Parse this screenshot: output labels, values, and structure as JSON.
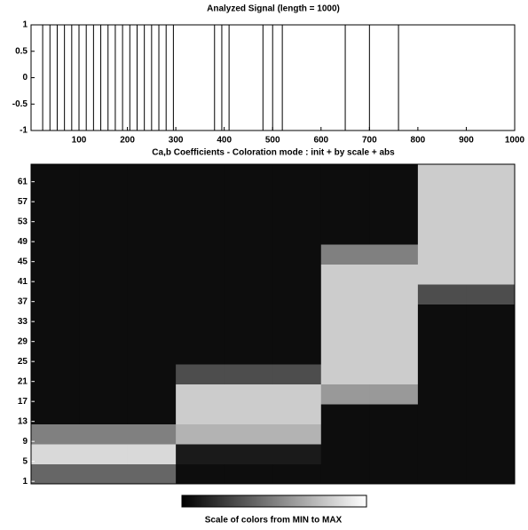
{
  "chart_data": [
    {
      "type": "line",
      "title": "Analyzed Signal  (length = 1000)",
      "color": "#000000",
      "x": [
        1,
        25,
        25,
        25,
        40,
        40,
        40,
        55,
        55,
        55,
        70,
        70,
        70,
        85,
        85,
        85,
        100,
        100,
        100,
        115,
        115,
        115,
        130,
        130,
        130,
        145,
        145,
        145,
        160,
        160,
        160,
        175,
        175,
        175,
        190,
        190,
        190,
        205,
        205,
        205,
        220,
        220,
        220,
        235,
        235,
        235,
        250,
        250,
        250,
        265,
        265,
        265,
        280,
        280,
        280,
        295,
        295,
        295,
        380,
        380,
        380,
        395,
        395,
        395,
        410,
        410,
        410,
        480,
        480,
        480,
        500,
        500,
        500,
        520,
        520,
        520,
        650,
        650,
        650,
        700,
        700,
        700,
        760,
        760,
        760,
        1000
      ],
      "values": [
        1,
        1,
        -1,
        1,
        1,
        -1,
        1,
        1,
        -1,
        1,
        1,
        -1,
        1,
        1,
        -1,
        1,
        1,
        -1,
        1,
        1,
        -1,
        1,
        1,
        -1,
        1,
        1,
        -1,
        1,
        1,
        -1,
        1,
        1,
        -1,
        1,
        1,
        -1,
        1,
        1,
        -1,
        1,
        1,
        -1,
        1,
        1,
        -1,
        1,
        1,
        -1,
        1,
        1,
        -1,
        1,
        1,
        -1,
        1,
        1,
        -1,
        1,
        1,
        -1,
        1,
        1,
        -1,
        1,
        1,
        -1,
        1,
        1,
        -1,
        1,
        1,
        -1,
        1,
        1,
        -1,
        1,
        1,
        -1,
        1,
        1,
        -1,
        1,
        1,
        -1,
        1,
        1
      ],
      "xlim": [
        1,
        1000
      ],
      "xticks": [
        100,
        200,
        300,
        400,
        500,
        600,
        700,
        800,
        900,
        1000
      ],
      "ylim": [
        -1,
        1
      ],
      "yticks": [
        -1,
        -0.5,
        0,
        0.5,
        1
      ]
    },
    {
      "type": "heatmap",
      "title": "Ca,b Coefficients  - Coloration mode : init + by scale + abs",
      "xbins": [
        1,
        100,
        200,
        300,
        400,
        500,
        600,
        700,
        800,
        900,
        1000
      ],
      "ybins": [
        0.5,
        4.5,
        8.5,
        12.5,
        16.5,
        20.5,
        24.5,
        28.5,
        32.5,
        36.5,
        40.5,
        44.5,
        48.5,
        52.5,
        56.5,
        60.5,
        64.5
      ],
      "values": [
        [
          0.4,
          0.4,
          0.4,
          0.05,
          0.05,
          0.05,
          0.05,
          0.05,
          0.05,
          0.05
        ],
        [
          0.85,
          0.85,
          0.85,
          0.1,
          0.1,
          0.1,
          0.05,
          0.05,
          0.05,
          0.05
        ],
        [
          0.5,
          0.5,
          0.5,
          0.7,
          0.7,
          0.7,
          0.05,
          0.05,
          0.05,
          0.05
        ],
        [
          0.05,
          0.05,
          0.05,
          0.8,
          0.8,
          0.8,
          0.05,
          0.05,
          0.05,
          0.05
        ],
        [
          0.05,
          0.05,
          0.05,
          0.8,
          0.8,
          0.8,
          0.6,
          0.6,
          0.05,
          0.05
        ],
        [
          0.05,
          0.05,
          0.05,
          0.3,
          0.3,
          0.3,
          0.8,
          0.8,
          0.05,
          0.05
        ],
        [
          0.05,
          0.05,
          0.05,
          0.05,
          0.05,
          0.05,
          0.8,
          0.8,
          0.05,
          0.05
        ],
        [
          0.05,
          0.05,
          0.05,
          0.05,
          0.05,
          0.05,
          0.8,
          0.8,
          0.05,
          0.05
        ],
        [
          0.05,
          0.05,
          0.05,
          0.05,
          0.05,
          0.05,
          0.8,
          0.8,
          0.05,
          0.05
        ],
        [
          0.05,
          0.05,
          0.05,
          0.05,
          0.05,
          0.05,
          0.8,
          0.8,
          0.3,
          0.3
        ],
        [
          0.05,
          0.05,
          0.05,
          0.05,
          0.05,
          0.05,
          0.8,
          0.8,
          0.8,
          0.8
        ],
        [
          0.05,
          0.05,
          0.05,
          0.05,
          0.05,
          0.05,
          0.5,
          0.5,
          0.8,
          0.8
        ],
        [
          0.05,
          0.05,
          0.05,
          0.05,
          0.05,
          0.05,
          0.05,
          0.05,
          0.8,
          0.8
        ],
        [
          0.05,
          0.05,
          0.05,
          0.05,
          0.05,
          0.05,
          0.05,
          0.05,
          0.8,
          0.8
        ],
        [
          0.05,
          0.05,
          0.05,
          0.05,
          0.05,
          0.05,
          0.05,
          0.05,
          0.8,
          0.8
        ],
        [
          0.05,
          0.05,
          0.05,
          0.05,
          0.05,
          0.05,
          0.05,
          0.05,
          0.8,
          0.8
        ]
      ],
      "ylim": [
        0.5,
        64.5
      ],
      "yticks": [
        1,
        5,
        9,
        13,
        17,
        21,
        25,
        29,
        33,
        37,
        41,
        45,
        49,
        53,
        57,
        61
      ],
      "colorbar_label": "Scale of colors from MIN to MAX"
    }
  ]
}
